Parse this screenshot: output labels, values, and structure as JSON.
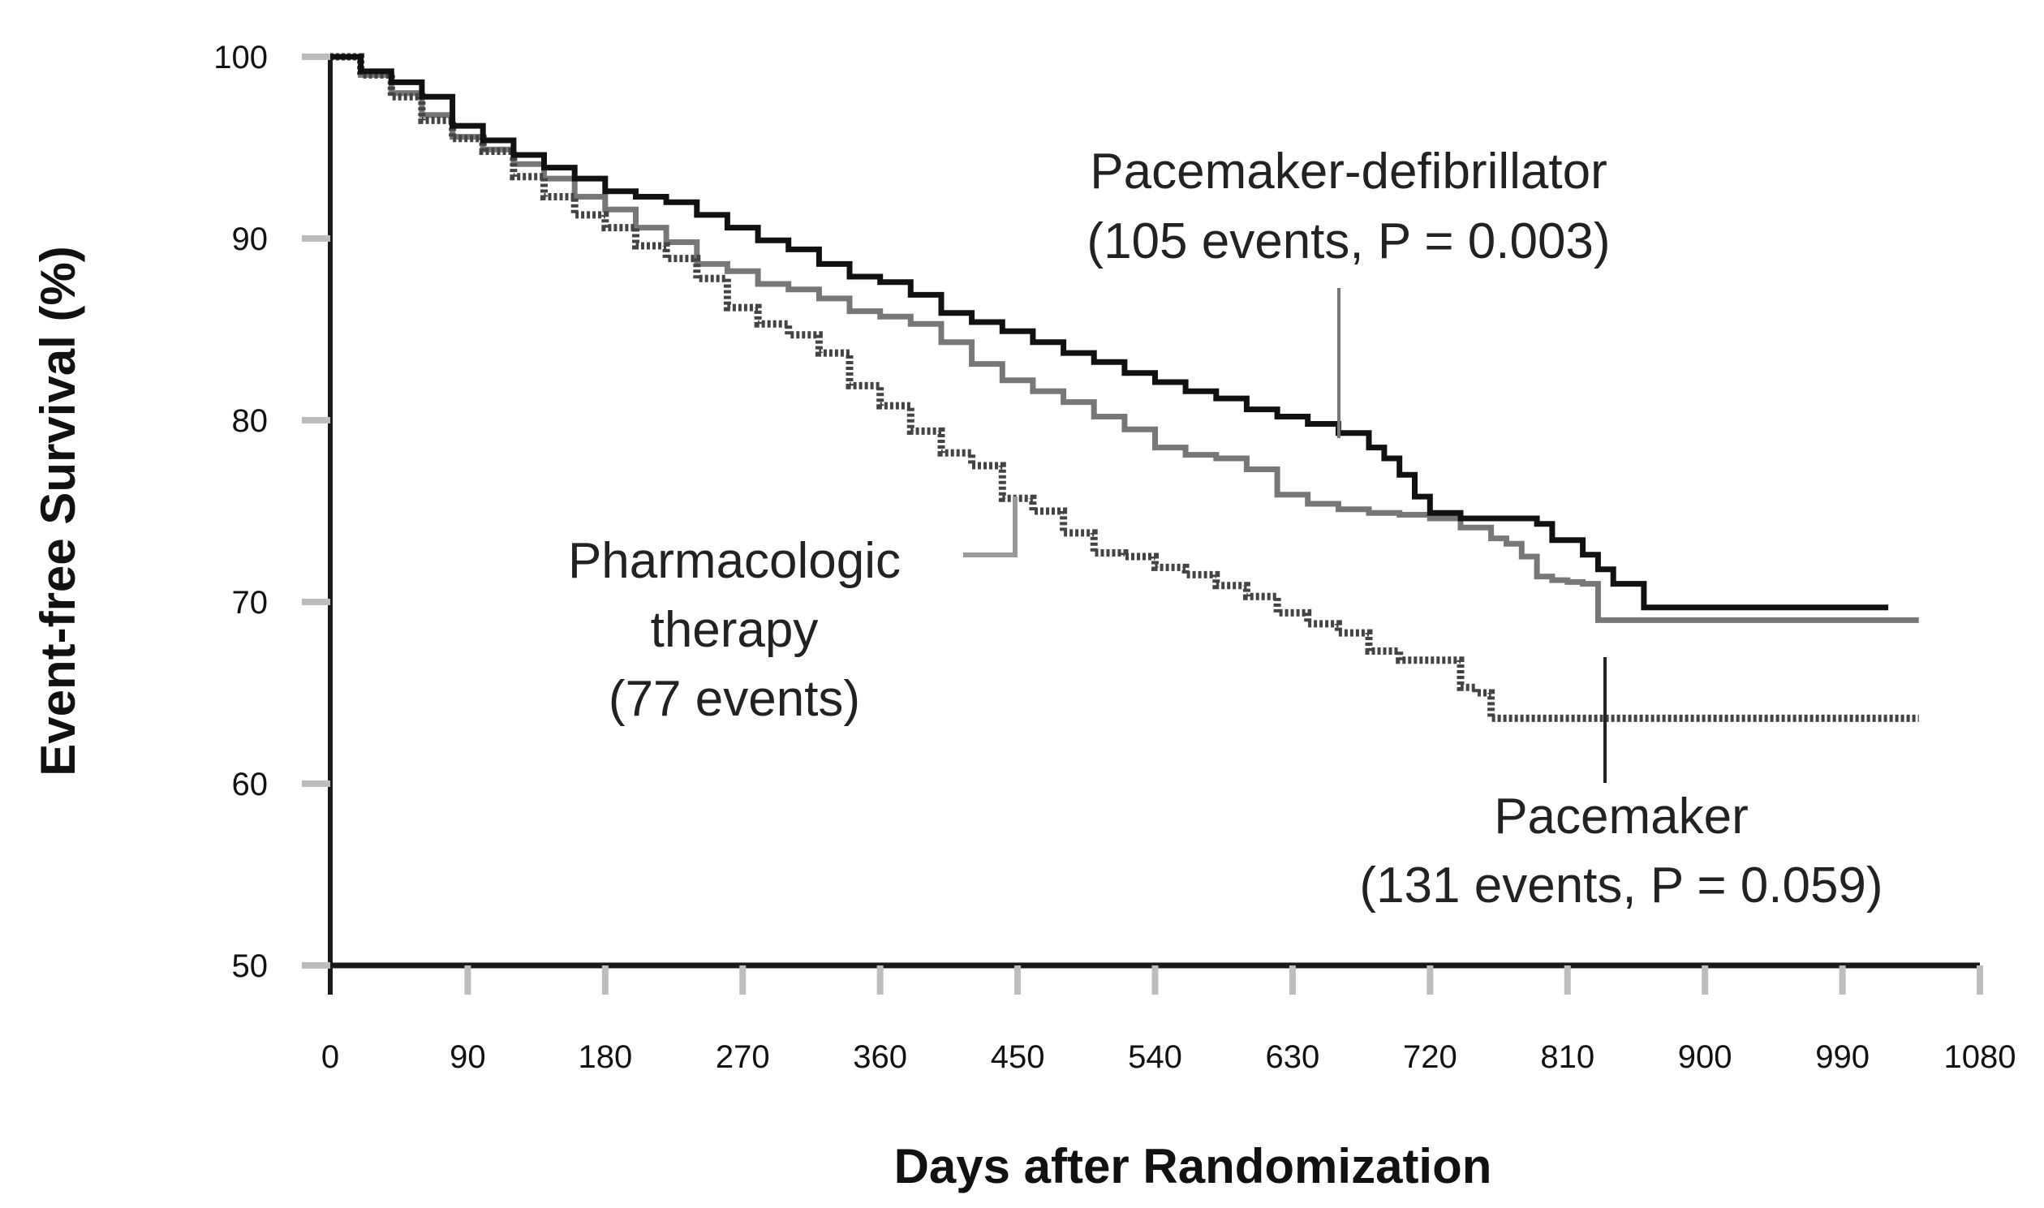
{
  "chart_data": {
    "type": "line",
    "subtype": "kaplan-meier-step",
    "title": "",
    "xlabel": "Days after Randomization",
    "ylabel": "Event-free Survival (%)",
    "xlim": [
      0,
      1080
    ],
    "ylim": [
      50,
      100
    ],
    "x_ticks": [
      0,
      90,
      180,
      270,
      360,
      450,
      540,
      630,
      720,
      810,
      900,
      990,
      1080
    ],
    "y_ticks": [
      50,
      60,
      70,
      80,
      90,
      100
    ],
    "x_tick_labels": [
      "0",
      "90",
      "180",
      "270",
      "360",
      "450",
      "540",
      "630",
      "720",
      "810",
      "900",
      "990",
      "1080"
    ],
    "y_tick_labels": [
      "50",
      "60",
      "70",
      "80",
      "90",
      "100"
    ],
    "grid": false,
    "series": [
      {
        "name": "Pacemaker-defibrillator",
        "color": "#111111",
        "style": "solid",
        "x": [
          0,
          20,
          40,
          60,
          80,
          100,
          120,
          140,
          160,
          180,
          200,
          220,
          240,
          260,
          280,
          300,
          320,
          340,
          360,
          380,
          400,
          420,
          440,
          460,
          480,
          500,
          520,
          540,
          560,
          580,
          600,
          620,
          640,
          660,
          680,
          690,
          700,
          710,
          720,
          740,
          760,
          780,
          790,
          800,
          810,
          820,
          830,
          840,
          860,
          900,
          950,
          1000,
          1020
        ],
        "y": [
          100,
          99.2,
          98.6,
          97.8,
          96.2,
          95.4,
          94.6,
          93.9,
          93.3,
          92.6,
          92.3,
          92.0,
          91.3,
          90.6,
          89.9,
          89.4,
          88.6,
          87.9,
          87.6,
          86.9,
          85.9,
          85.4,
          84.9,
          84.3,
          83.7,
          83.2,
          82.6,
          82.1,
          81.6,
          81.2,
          80.6,
          80.2,
          79.8,
          79.3,
          78.5,
          77.9,
          77.0,
          75.8,
          74.9,
          74.6,
          74.6,
          74.6,
          74.3,
          73.4,
          73.4,
          72.6,
          71.8,
          71.0,
          69.7,
          69.7,
          69.7,
          69.7,
          69.7
        ]
      },
      {
        "name": "Pacemaker",
        "color": "#777777",
        "style": "solid",
        "x": [
          0,
          20,
          40,
          60,
          80,
          100,
          120,
          140,
          160,
          180,
          200,
          220,
          240,
          260,
          280,
          300,
          320,
          340,
          360,
          380,
          400,
          420,
          440,
          460,
          480,
          500,
          520,
          540,
          560,
          580,
          600,
          620,
          640,
          660,
          680,
          700,
          720,
          740,
          760,
          770,
          780,
          790,
          800,
          810,
          820,
          830,
          850,
          900,
          950,
          1000,
          1040
        ],
        "y": [
          100,
          99.0,
          98.0,
          96.8,
          95.6,
          94.9,
          94.1,
          93.3,
          92.3,
          91.6,
          90.6,
          89.8,
          88.6,
          88.2,
          87.5,
          87.2,
          86.7,
          86.0,
          85.7,
          85.3,
          84.3,
          83.1,
          82.2,
          81.6,
          81.0,
          80.2,
          79.5,
          78.5,
          78.1,
          77.9,
          77.3,
          75.9,
          75.4,
          75.1,
          74.9,
          74.8,
          74.6,
          74.1,
          73.5,
          73.2,
          72.5,
          71.4,
          71.2,
          71.1,
          71.0,
          69.0,
          69.0,
          69.0,
          69.0,
          69.0,
          69.0
        ]
      },
      {
        "name": "Pharmacologic therapy",
        "color": "#444444",
        "style": "dotted",
        "x": [
          0,
          20,
          40,
          60,
          80,
          100,
          120,
          140,
          160,
          180,
          200,
          220,
          240,
          260,
          280,
          300,
          320,
          340,
          360,
          380,
          400,
          420,
          440,
          460,
          480,
          500,
          520,
          540,
          560,
          580,
          600,
          620,
          640,
          660,
          680,
          700,
          720,
          740,
          750,
          760,
          790,
          850,
          900,
          950,
          1000,
          1040
        ],
        "y": [
          100,
          99.0,
          97.8,
          96.5,
          95.5,
          94.8,
          93.4,
          92.3,
          91.3,
          90.6,
          89.6,
          88.9,
          87.8,
          86.2,
          85.3,
          84.7,
          83.7,
          81.9,
          80.8,
          79.4,
          78.2,
          77.5,
          75.7,
          75.0,
          73.8,
          72.7,
          72.5,
          71.9,
          71.5,
          70.9,
          70.3,
          69.4,
          68.8,
          68.3,
          67.3,
          66.8,
          66.8,
          65.3,
          65.0,
          63.6,
          63.6,
          63.6,
          63.6,
          63.6,
          63.6,
          63.6
        ]
      }
    ],
    "annotations": [
      {
        "id": "pd",
        "lines": [
          "Pacemaker-defibrillator",
          "(105 events, P = 0.003)"
        ],
        "points_to": "Pacemaker-defibrillator"
      },
      {
        "id": "pm",
        "lines": [
          "Pacemaker",
          "(131 events, P = 0.059)"
        ],
        "points_to": "Pacemaker"
      },
      {
        "id": "ph",
        "lines": [
          "Pharmacologic",
          "therapy",
          "(77 events)"
        ],
        "points_to": "Pharmacologic therapy"
      }
    ]
  }
}
